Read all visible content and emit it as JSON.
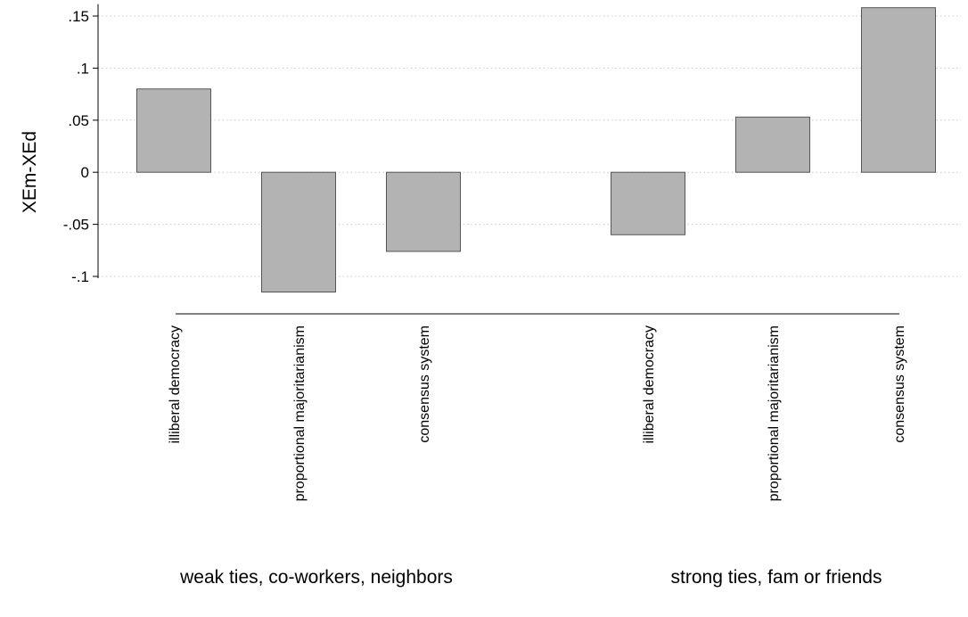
{
  "chart_data": {
    "type": "bar",
    "title": "",
    "ylabel": "XEm-XEd",
    "xlabel": "",
    "ylim": [
      -0.115,
      0.158
    ],
    "yticks": [
      {
        "value": 0.15,
        "label": ".15"
      },
      {
        "value": 0.1,
        "label": ".1"
      },
      {
        "value": 0.05,
        "label": ".05"
      },
      {
        "value": 0,
        "label": "0"
      },
      {
        "value": -0.05,
        "label": "-.05"
      },
      {
        "value": -0.1,
        "label": "-.1"
      }
    ],
    "grid": true,
    "bar_color": "#b3b3b3",
    "groups": [
      {
        "label": "weak ties, co-workers, neighbors",
        "categories": [
          "illiberal democracy",
          "proportional majoritarianism",
          "consensus system"
        ],
        "values": [
          0.08,
          -0.115,
          -0.076
        ]
      },
      {
        "label": "strong ties, fam or friends",
        "categories": [
          "illiberal democracy",
          "proportional majoritarianism",
          "consensus system"
        ],
        "values": [
          -0.06,
          0.053,
          0.158
        ]
      }
    ]
  }
}
